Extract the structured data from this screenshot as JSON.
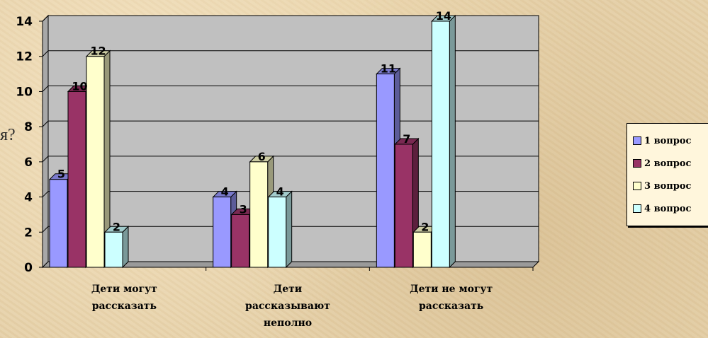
{
  "stray_text": "я?",
  "chart_data": {
    "type": "bar",
    "title": "",
    "xlabel": "",
    "ylabel": "",
    "ylim": [
      0,
      14
    ],
    "yticks": [
      0,
      2,
      4,
      6,
      8,
      10,
      12,
      14
    ],
    "grid": true,
    "legend_position": "right",
    "categories": [
      [
        "Дети могут",
        "рассказать"
      ],
      [
        "Дети",
        "рассказывают",
        "неполно"
      ],
      [
        "Дети не могут",
        "рассказать"
      ]
    ],
    "series": [
      {
        "name": "1 вопрос",
        "color": "#9999ff",
        "values": [
          5,
          4,
          11
        ]
      },
      {
        "name": "2 вопрос",
        "color": "#993366",
        "values": [
          10,
          3,
          7
        ]
      },
      {
        "name": "3 вопрос",
        "color": "#ffffcc",
        "values": [
          12,
          6,
          2
        ]
      },
      {
        "name": "4 вопрос",
        "color": "#ccffff",
        "values": [
          2,
          4,
          14
        ]
      }
    ],
    "plot_background": "#c0c0c0"
  }
}
